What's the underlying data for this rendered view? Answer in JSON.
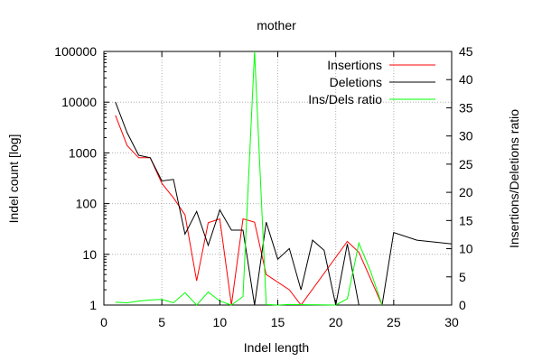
{
  "chart_data": {
    "type": "line",
    "title": "mother",
    "xlabel": "Indel length",
    "ylabel": "Indel count [log]",
    "y2label": "Insertions/Deletions ratio",
    "xlim": [
      0,
      30
    ],
    "ylim": [
      1,
      100000
    ],
    "y2lim": [
      0,
      45
    ],
    "yscale": "log",
    "grid": true,
    "legend_position": "top-right",
    "x_ticks": [
      0,
      5,
      10,
      15,
      20,
      25,
      30
    ],
    "y_ticks": [
      1,
      10,
      100,
      1000,
      10000,
      100000
    ],
    "y2_ticks": [
      0,
      5,
      10,
      15,
      20,
      25,
      30,
      35,
      40,
      45
    ],
    "series": [
      {
        "name": "Insertions",
        "axis": "left",
        "color": "#ff0000",
        "x": [
          1,
          2,
          3,
          4,
          5,
          6,
          7,
          8,
          9,
          10,
          11,
          12,
          13,
          14,
          16,
          17,
          21,
          22,
          24
        ],
        "y": [
          5500,
          1400,
          800,
          800,
          250,
          130,
          60,
          3,
          42,
          50,
          1,
          50,
          43,
          4,
          2,
          1,
          18,
          11,
          1
        ]
      },
      {
        "name": "Deletions",
        "axis": "left",
        "color": "#000000",
        "x": [
          1,
          2,
          3,
          4,
          5,
          6,
          7,
          8,
          9,
          10,
          11,
          12,
          13,
          14,
          15,
          16,
          17,
          18,
          19,
          20,
          21,
          22,
          24,
          25,
          27,
          30
        ],
        "y": [
          10000,
          2500,
          900,
          800,
          280,
          300,
          25,
          70,
          15,
          75,
          30,
          30,
          1,
          43,
          8,
          13,
          2,
          19,
          12,
          1,
          16,
          1,
          1,
          27,
          19,
          16
        ]
      },
      {
        "name": "Ins/Dels ratio",
        "axis": "right",
        "color": "#00ff00",
        "x": [
          1,
          2,
          3,
          4,
          5,
          6,
          7,
          8,
          9,
          10,
          11,
          12,
          13,
          14,
          15,
          16,
          20,
          21,
          22,
          23,
          24
        ],
        "y": [
          0.5,
          0.4,
          0.7,
          0.9,
          1.0,
          0.4,
          2.2,
          0.0,
          2.3,
          0.7,
          0.0,
          1.5,
          45,
          0.1,
          0.0,
          0.1,
          0.0,
          1.1,
          11,
          6,
          0.0
        ]
      }
    ]
  }
}
